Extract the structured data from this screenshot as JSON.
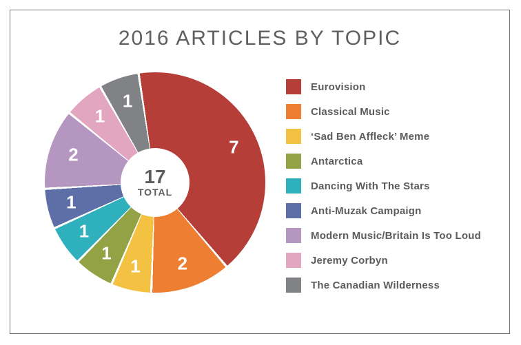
{
  "chart": {
    "type": "donut",
    "title": "2016 ARTICLES BY TOPIC",
    "title_color": "#5f5f5f",
    "title_fontsize": 30,
    "background_color": "#ffffff",
    "frame_border_color": "#6f6f6f",
    "total_value": "17",
    "total_label": "TOTAL",
    "center_text_color": "#5c5c5c",
    "segment_label_color": "#ffffff",
    "segment_label_fontsize": 26,
    "legend_text_color": "#5c5c5c",
    "legend_fontsize": 15,
    "gap_color": "#ffffff",
    "gap_degrees": 1.2,
    "inner_radius_ratio": 0.31,
    "start_angle_deg": -8,
    "segments": [
      {
        "label": "Eurovision",
        "value": 7,
        "color": "#b53e39"
      },
      {
        "label": "Classical Music",
        "value": 2,
        "color": "#ee7e32"
      },
      {
        "label": "‘Sad Ben Affleck’ Meme",
        "value": 1,
        "color": "#f4c242"
      },
      {
        "label": "Antarctica",
        "value": 1,
        "color": "#93a245"
      },
      {
        "label": "Dancing With The Stars",
        "value": 1,
        "color": "#2fb0bd"
      },
      {
        "label": "Anti-Muzak Campaign",
        "value": 1,
        "color": "#5e6fa8"
      },
      {
        "label": "Modern Music/Britain Is Too Loud",
        "value": 2,
        "color": "#b596c0"
      },
      {
        "label": "Jeremy Corbyn",
        "value": 1,
        "color": "#e3a6c1"
      },
      {
        "label": "The Canadian Wilderness",
        "value": 1,
        "color": "#808285"
      }
    ]
  }
}
